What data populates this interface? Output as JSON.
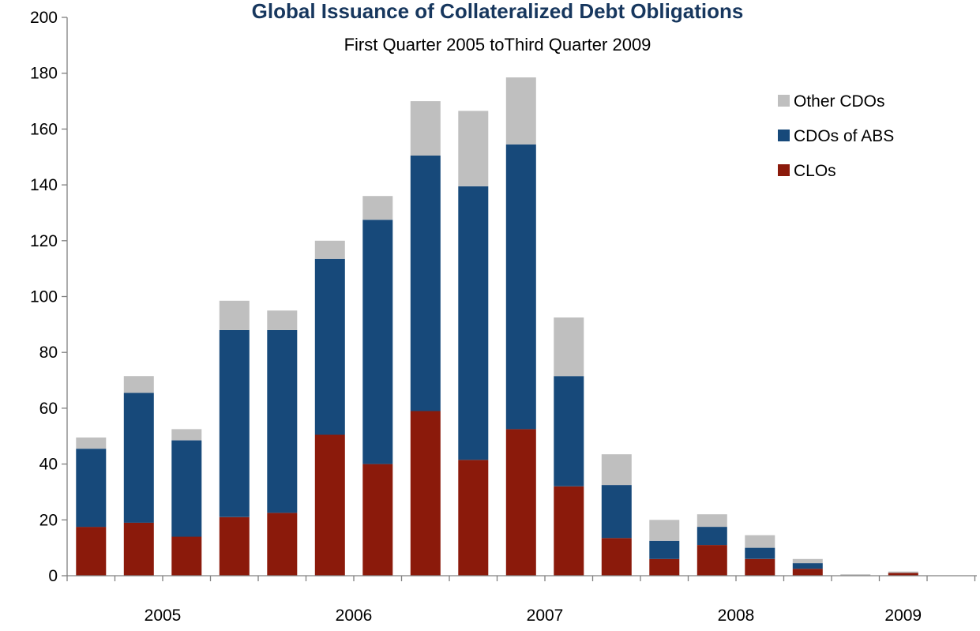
{
  "chart_data": {
    "type": "bar",
    "stacked": true,
    "title": "Global Issuance of Collateralized Debt Obligations",
    "subtitle": "First Quarter 2005 toThird Quarter 2009",
    "xlabel": "",
    "ylabel": "",
    "ylim": [
      0,
      200
    ],
    "y_ticks": [
      0,
      20,
      40,
      60,
      80,
      100,
      120,
      140,
      160,
      180,
      200
    ],
    "x_tick_labels": [
      "2005",
      "2006",
      "2007",
      "2008",
      "2009"
    ],
    "quarters_per_year": 4,
    "categories": [
      "2005 Q1",
      "2005 Q2",
      "2005 Q3",
      "2005 Q4",
      "2006 Q1",
      "2006 Q2",
      "2006 Q3",
      "2006 Q4",
      "2007 Q1",
      "2007 Q2",
      "2007 Q3",
      "2007 Q4",
      "2008 Q1",
      "2008 Q2",
      "2008 Q3",
      "2008 Q4",
      "2009 Q1",
      "2009 Q2",
      "2009 Q3"
    ],
    "series": [
      {
        "name": "CLOs",
        "color": "#8b1a0b",
        "values": [
          17.5,
          19,
          14,
          21,
          22.5,
          50.5,
          40,
          59,
          41.5,
          52.5,
          32,
          13.5,
          6,
          11,
          6,
          2.5,
          0,
          1,
          0
        ]
      },
      {
        "name": "CDOs of ABS",
        "color": "#17497a",
        "values": [
          28,
          46.5,
          34.5,
          67,
          65.5,
          63,
          87.5,
          91.5,
          98,
          102,
          39.5,
          19,
          6.5,
          6.5,
          4,
          2,
          0,
          0,
          0
        ]
      },
      {
        "name": "Other CDOs",
        "color": "#bfbfbf",
        "values": [
          4,
          6,
          4,
          10.5,
          7,
          6.5,
          8.5,
          19.5,
          27,
          24,
          21,
          11,
          7.5,
          4.5,
          4.5,
          1.5,
          0.5,
          0.5,
          0
        ]
      }
    ],
    "legend": {
      "placement": "top-right",
      "entries": [
        {
          "label": "Other CDOs",
          "color": "#bfbfbf"
        },
        {
          "label": "CDOs of ABS",
          "color": "#17497a"
        },
        {
          "label": "CLOs",
          "color": "#8b1a0b"
        }
      ]
    },
    "grid": false
  }
}
